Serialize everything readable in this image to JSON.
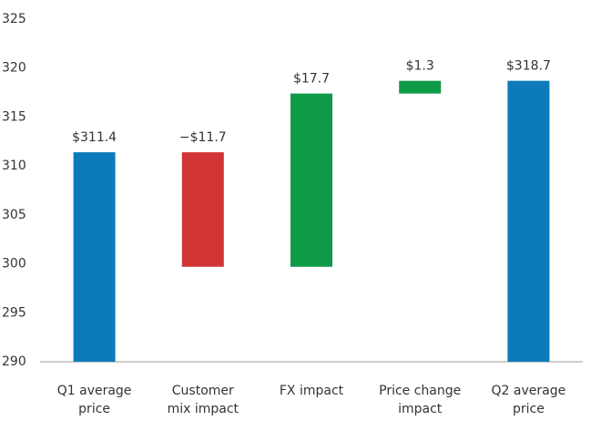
{
  "chart_data": {
    "type": "waterfall",
    "categories": [
      "Q1 average\nprice",
      "Customer\nmix impact",
      "FX impact",
      "Price change\nimpact",
      "Q2 average\nprice"
    ],
    "values": [
      311.4,
      -11.7,
      17.7,
      1.3,
      318.7
    ],
    "value_labels": [
      "$311.4",
      "−$11.7",
      "$17.7",
      "$1.3",
      "$318.7"
    ],
    "totals": [
      true,
      false,
      false,
      false,
      true
    ],
    "colors": [
      "#0b7bb9",
      "#d13536",
      "#0e9a47",
      "#0e9a47",
      "#0b7bb9"
    ],
    "ylim": [
      290,
      325
    ],
    "yticks": [
      290,
      295,
      300,
      305,
      310,
      315,
      320,
      325
    ],
    "grid": false
  }
}
